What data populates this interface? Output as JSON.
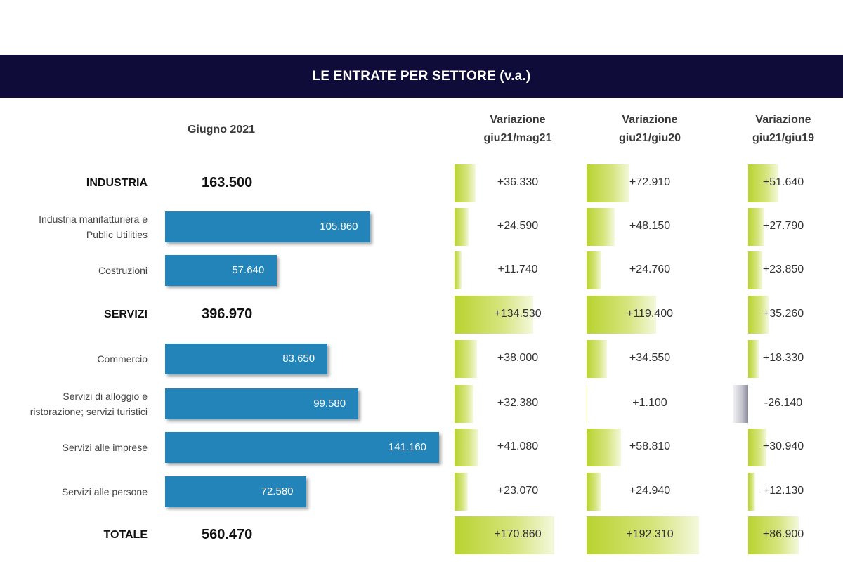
{
  "title": "LE ENTRATE PER SETTORE (v.a.)",
  "headers": {
    "month": "Giugno 2021",
    "var1": [
      "Variazione",
      "giu21/mag21"
    ],
    "var2": [
      "Variazione",
      "giu21/giu20"
    ],
    "var3": [
      "Variazione",
      "giu21/giu19"
    ]
  },
  "colors": {
    "title_bg": "#0f0c3a",
    "bar": "#2284b8",
    "positive": "#b9d32f",
    "negative": "#8a8a9c"
  },
  "chart_data": {
    "type": "bar",
    "title": "LE ENTRATE PER SETTORE (v.a.)",
    "xlabel": "Giugno 2021",
    "categories": [
      "INDUSTRIA",
      "Industria manifatturiera e Public Utilities",
      "Costruzioni",
      "SERVIZI",
      "Commercio",
      "Servizi di alloggio e ristorazione; servizi turistici",
      "Servizi alle imprese",
      "Servizi alle persone",
      "TOTALE"
    ],
    "rows": [
      {
        "label": [
          "INDUSTRIA"
        ],
        "type": "total",
        "value": 163500,
        "display": "163.500",
        "var": [
          {
            "v": 36330,
            "t": "+36.330"
          },
          {
            "v": 72910,
            "t": "+72.910"
          },
          {
            "v": 51640,
            "t": "+51.640"
          }
        ]
      },
      {
        "label": [
          "Industria manifatturiera e",
          "Public Utilities"
        ],
        "type": "bar",
        "value": 105860,
        "display": "105.860",
        "var": [
          {
            "v": 24590,
            "t": "+24.590"
          },
          {
            "v": 48150,
            "t": "+48.150"
          },
          {
            "v": 27790,
            "t": "+27.790"
          }
        ]
      },
      {
        "label": [
          "Costruzioni"
        ],
        "type": "bar",
        "value": 57640,
        "display": "57.640",
        "var": [
          {
            "v": 11740,
            "t": "+11.740"
          },
          {
            "v": 24760,
            "t": "+24.760"
          },
          {
            "v": 23850,
            "t": "+23.850"
          }
        ]
      },
      {
        "label": [
          "SERVIZI"
        ],
        "type": "total",
        "value": 396970,
        "display": "396.970",
        "var": [
          {
            "v": 134530,
            "t": "+134.530"
          },
          {
            "v": 119400,
            "t": "+119.400"
          },
          {
            "v": 35260,
            "t": "+35.260"
          }
        ]
      },
      {
        "label": [
          "Commercio"
        ],
        "type": "bar",
        "value": 83650,
        "display": "83.650",
        "var": [
          {
            "v": 38000,
            "t": "+38.000"
          },
          {
            "v": 34550,
            "t": "+34.550"
          },
          {
            "v": 18330,
            "t": "+18.330"
          }
        ]
      },
      {
        "label": [
          "Servizi di alloggio e",
          "ristorazione; servizi turistici"
        ],
        "type": "bar",
        "value": 99580,
        "display": "99.580",
        "var": [
          {
            "v": 32380,
            "t": "+32.380"
          },
          {
            "v": 1100,
            "t": "+1.100"
          },
          {
            "v": -26140,
            "t": "-26.140"
          }
        ]
      },
      {
        "label": [
          "Servizi alle imprese"
        ],
        "type": "bar",
        "value": 141160,
        "display": "141.160",
        "var": [
          {
            "v": 41080,
            "t": "+41.080"
          },
          {
            "v": 58810,
            "t": "+58.810"
          },
          {
            "v": 30940,
            "t": "+30.940"
          }
        ]
      },
      {
        "label": [
          "Servizi alle persone"
        ],
        "type": "bar",
        "value": 72580,
        "display": "72.580",
        "var": [
          {
            "v": 23070,
            "t": "+23.070"
          },
          {
            "v": 24940,
            "t": "+24.940"
          },
          {
            "v": 12130,
            "t": "+12.130"
          }
        ]
      },
      {
        "label": [
          "TOTALE"
        ],
        "type": "total",
        "value": 560470,
        "display": "560.470",
        "var": [
          {
            "v": 170860,
            "t": "+170.860"
          },
          {
            "v": 192310,
            "t": "+192.310"
          },
          {
            "v": 86900,
            "t": "+86.900"
          }
        ]
      }
    ]
  }
}
